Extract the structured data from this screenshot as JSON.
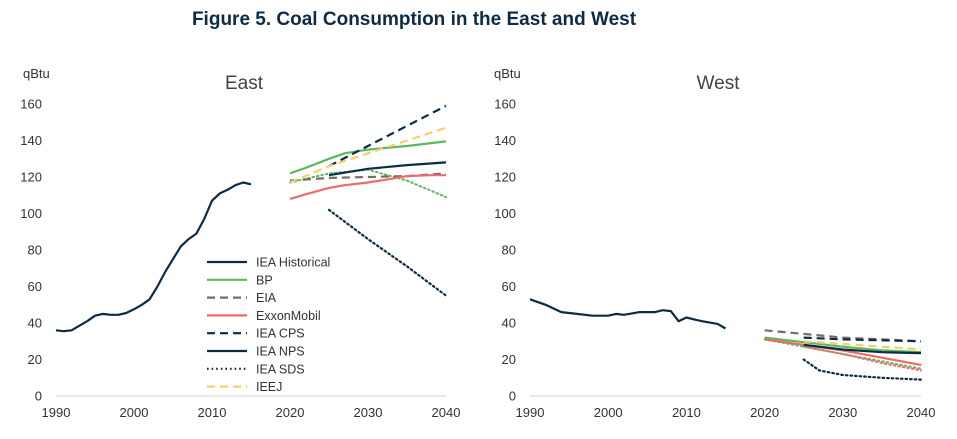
{
  "figure_title": "Figure 5. Coal Consumption in the East and West",
  "legend": [
    {
      "name": "IEA Historical",
      "color": "#0d2b45",
      "dash": "solid"
    },
    {
      "name": "BP",
      "color": "#5cb85c",
      "dash": "solid"
    },
    {
      "name": "EIA",
      "color": "#7a6a62",
      "dash": "dashed"
    },
    {
      "name": "ExxonMobil",
      "color": "#ee6b6b",
      "dash": "solid"
    },
    {
      "name": "IEA CPS",
      "color": "#0d2b45",
      "dash": "dashed"
    },
    {
      "name": "IEA NPS",
      "color": "#0d2b45",
      "dash": "solid"
    },
    {
      "name": "IEA SDS",
      "color": "#0d2b45",
      "dash": "dotted"
    },
    {
      "name": "IEEJ",
      "color": "#f5cf6a",
      "dash": "dashed"
    }
  ],
  "chart_data": [
    {
      "type": "line",
      "title": "East",
      "ylabel": "qBtu",
      "xlim": [
        1990,
        2040
      ],
      "ylim": [
        0,
        160
      ],
      "xticks": [
        1990,
        2000,
        2010,
        2020,
        2030,
        2040
      ],
      "yticks": [
        0,
        20,
        40,
        60,
        80,
        100,
        120,
        140,
        160
      ],
      "grid": false,
      "legend_position": "bottom-left",
      "series": [
        {
          "name": "IEA Historical",
          "x": [
            1990,
            1991,
            1992,
            1993,
            1994,
            1995,
            1996,
            1997,
            1998,
            1999,
            2000,
            2001,
            2002,
            2003,
            2004,
            2005,
            2006,
            2007,
            2008,
            2009,
            2010,
            2011,
            2012,
            2013,
            2014,
            2015
          ],
          "y": [
            36,
            35.5,
            36,
            38.5,
            41,
            44,
            45,
            44.5,
            44.5,
            45.5,
            47.5,
            50,
            53,
            60,
            68,
            75,
            82,
            86,
            89,
            97,
            107,
            111,
            113,
            115.5,
            117,
            116
          ]
        },
        {
          "name": "BP",
          "x": [
            2020,
            2022,
            2025,
            2027,
            2030,
            2035,
            2040
          ],
          "y": [
            122,
            125,
            130,
            133,
            135,
            137,
            139.5
          ]
        },
        {
          "name": "EIA",
          "x": [
            2020,
            2025,
            2030,
            2035,
            2040
          ],
          "y": [
            118,
            119.5,
            120,
            120.5,
            122
          ]
        },
        {
          "name": "ExxonMobil",
          "x": [
            2020,
            2022,
            2025,
            2027,
            2030,
            2033,
            2035,
            2038,
            2040
          ],
          "y": [
            108,
            110.5,
            114,
            115.5,
            117,
            119,
            120.5,
            121,
            121
          ]
        },
        {
          "name": "IEA CPS",
          "x": [
            2025,
            2030,
            2035,
            2040
          ],
          "y": [
            126,
            137,
            148,
            159
          ]
        },
        {
          "name": "IEA NPS",
          "x": [
            2025,
            2030,
            2035,
            2040
          ],
          "y": [
            121,
            124.5,
            126.5,
            128
          ]
        },
        {
          "name": "IEA SDS",
          "x": [
            2025,
            2030,
            2035,
            2040
          ],
          "y": [
            102,
            86,
            71,
            55
          ]
        },
        {
          "name": "IEEJ",
          "x": [
            2020,
            2025,
            2030,
            2035,
            2040
          ],
          "y": [
            117,
            126,
            133,
            140,
            147
          ]
        }
      ],
      "extra_series": [
        {
          "color": "#5cb85c",
          "dash": "dotted",
          "x": [
            2020,
            2025,
            2030,
            2035,
            2040
          ],
          "y": [
            117,
            122,
            124,
            118,
            109
          ]
        }
      ]
    },
    {
      "type": "line",
      "title": "West",
      "ylabel": "qBtu",
      "xlim": [
        1990,
        2040
      ],
      "ylim": [
        0,
        160
      ],
      "xticks": [
        1990,
        2000,
        2010,
        2020,
        2030,
        2040
      ],
      "yticks": [
        0,
        20,
        40,
        60,
        80,
        100,
        120,
        140,
        160
      ],
      "grid": false,
      "series": [
        {
          "name": "IEA Historical",
          "x": [
            1990,
            1992,
            1994,
            1996,
            1998,
            2000,
            2001,
            2002,
            2004,
            2006,
            2007,
            2008,
            2009,
            2010,
            2011,
            2012,
            2014,
            2015
          ],
          "y": [
            53,
            50,
            46,
            45,
            44,
            44,
            45,
            44.5,
            46,
            46,
            47,
            46.5,
            41,
            43,
            42,
            41,
            39.5,
            37
          ]
        },
        {
          "name": "BP",
          "x": [
            2020,
            2025,
            2030,
            2035,
            2040
          ],
          "y": [
            32,
            29.5,
            27,
            25,
            24
          ]
        },
        {
          "name": "EIA",
          "x": [
            2020,
            2025,
            2030,
            2035,
            2040
          ],
          "y": [
            36,
            34,
            32,
            31,
            30
          ]
        },
        {
          "name": "ExxonMobil",
          "x": [
            2020,
            2025,
            2030,
            2035,
            2040
          ],
          "y": [
            31,
            28,
            25,
            21,
            17
          ]
        },
        {
          "name": "IEA CPS",
          "x": [
            2025,
            2030,
            2035,
            2040
          ],
          "y": [
            32,
            31,
            30.5,
            30
          ]
        },
        {
          "name": "IEA NPS",
          "x": [
            2025,
            2030,
            2035,
            2040
          ],
          "y": [
            28,
            25.5,
            24,
            23.5
          ]
        },
        {
          "name": "IEA SDS",
          "x": [
            2025,
            2027,
            2030,
            2035,
            2040
          ],
          "y": [
            20,
            14,
            11.5,
            10,
            9
          ]
        },
        {
          "name": "IEEJ",
          "x": [
            2025,
            2030,
            2035,
            2040
          ],
          "y": [
            30,
            28.5,
            27,
            25.5
          ]
        }
      ],
      "extra_series": [
        {
          "color": "#5cb85c",
          "dash": "dotted",
          "x": [
            2020,
            2025,
            2030,
            2035,
            2040
          ],
          "y": [
            31,
            27,
            23,
            19,
            15
          ]
        },
        {
          "color": "#ee6b6b",
          "dash": "dotted",
          "x": [
            2025,
            2030,
            2035,
            2040
          ],
          "y": [
            27,
            23,
            18,
            14
          ]
        }
      ]
    }
  ]
}
